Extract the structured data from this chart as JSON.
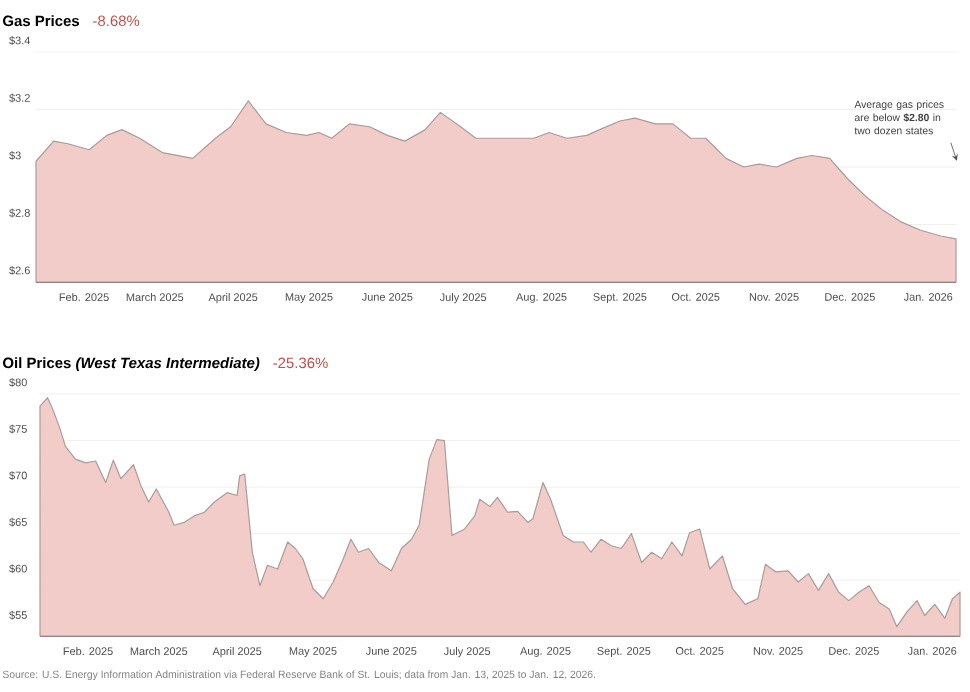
{
  "chart_data": [
    {
      "type": "area",
      "title": "Gas Prices",
      "subtitle": "-8.68%",
      "color": "#f2ccc8",
      "grid": "y",
      "xlim": [
        "2025-01-13",
        "2026-01-12"
      ],
      "ylim": [
        2.6,
        3.4
      ],
      "xticks": [
        {
          "value": "2025-02-01",
          "label": "Feb. 2025"
        },
        {
          "value": "2025-03-01",
          "label": "March 2025"
        },
        {
          "value": "2025-04-01",
          "label": "April 2025"
        },
        {
          "value": "2025-05-01",
          "label": "May 2025"
        },
        {
          "value": "2025-06-01",
          "label": "June 2025"
        },
        {
          "value": "2025-07-01",
          "label": "July 2025"
        },
        {
          "value": "2025-08-01",
          "label": "Aug. 2025"
        },
        {
          "value": "2025-09-01",
          "label": "Sept. 2025"
        },
        {
          "value": "2025-10-01",
          "label": "Oct. 2025"
        },
        {
          "value": "2025-11-01",
          "label": "Nov. 2025"
        },
        {
          "value": "2025-12-01",
          "label": "Dec. 2025"
        },
        {
          "value": "2026-01-01",
          "label": "Jan. 2026"
        }
      ],
      "yticks": [
        {
          "value": 2.6,
          "label": "$2.6"
        },
        {
          "value": 2.8,
          "label": "$2.8"
        },
        {
          "value": 3,
          "label": "$3"
        },
        {
          "value": 3.2,
          "label": "$3.2"
        },
        {
          "value": 3.4,
          "label": "$3.4"
        }
      ],
      "x": [
        "2025-01-13",
        "2025-01-20",
        "2025-01-26",
        "2025-02-03",
        "2025-02-10",
        "2025-02-16",
        "2025-02-23",
        "2025-03-04",
        "2025-03-16",
        "2025-03-25",
        "2025-03-31",
        "2025-04-07",
        "2025-04-14",
        "2025-04-22",
        "2025-04-30",
        "2025-05-05",
        "2025-05-10",
        "2025-05-17",
        "2025-05-25",
        "2025-06-01",
        "2025-06-08",
        "2025-06-16",
        "2025-06-22",
        "2025-06-30",
        "2025-07-06",
        "2025-07-18",
        "2025-07-29",
        "2025-08-04",
        "2025-08-11",
        "2025-08-19",
        "2025-08-24",
        "2025-09-01",
        "2025-09-07",
        "2025-09-15",
        "2025-09-22",
        "2025-09-29",
        "2025-10-05",
        "2025-10-13",
        "2025-10-20",
        "2025-10-26",
        "2025-11-02",
        "2025-11-10",
        "2025-11-16",
        "2025-11-23",
        "2025-11-30",
        "2025-12-07",
        "2025-12-14",
        "2025-12-21",
        "2025-12-29",
        "2026-01-06",
        "2026-01-12"
      ],
      "values": [
        3.02,
        3.09,
        3.08,
        3.06,
        3.11,
        3.13,
        3.1,
        3.05,
        3.03,
        3.1,
        3.14,
        3.23,
        3.15,
        3.12,
        3.11,
        3.12,
        3.1,
        3.15,
        3.14,
        3.11,
        3.09,
        3.13,
        3.19,
        3.14,
        3.1,
        3.1,
        3.1,
        3.12,
        3.1,
        3.11,
        3.13,
        3.16,
        3.17,
        3.15,
        3.15,
        3.1,
        3.1,
        3.03,
        3.0,
        3.01,
        3.0,
        3.03,
        3.04,
        3.03,
        2.96,
        2.9,
        2.85,
        2.81,
        2.78,
        2.76,
        2.75
      ],
      "annotations": [
        "Average gas prices are below **$2.80** in two dozen states"
      ]
    },
    {
      "type": "area",
      "title": "Oil Prices *(West Texas Intermediate)*",
      "subtitle": "-25.36%",
      "color": "#f2ccc8",
      "grid": "y",
      "xlim": [
        "2025-01-13",
        "2026-01-12"
      ],
      "ylim": [
        54,
        80
      ],
      "xticks": [
        {
          "value": "2025-02-01",
          "label": "Feb. 2025"
        },
        {
          "value": "2025-03-01",
          "label": "March 2025"
        },
        {
          "value": "2025-04-01",
          "label": "April 2025"
        },
        {
          "value": "2025-05-01",
          "label": "May 2025"
        },
        {
          "value": "2025-06-01",
          "label": "June 2025"
        },
        {
          "value": "2025-07-01",
          "label": "July 2025"
        },
        {
          "value": "2025-08-01",
          "label": "Aug. 2025"
        },
        {
          "value": "2025-09-01",
          "label": "Sept. 2025"
        },
        {
          "value": "2025-10-01",
          "label": "Oct. 2025"
        },
        {
          "value": "2025-11-01",
          "label": "Nov. 2025"
        },
        {
          "value": "2025-12-01",
          "label": "Dec. 2025"
        },
        {
          "value": "2026-01-01",
          "label": "Jan. 2026"
        }
      ],
      "yticks": [
        {
          "value": 55,
          "label": "$55"
        },
        {
          "value": 60,
          "label": "$60"
        },
        {
          "value": 65,
          "label": "$65"
        },
        {
          "value": 70,
          "label": "$70"
        },
        {
          "value": 75,
          "label": "$75"
        },
        {
          "value": 80,
          "label": "$80"
        }
      ],
      "x": [
        "2025-01-13",
        "2025-01-16",
        "2025-01-18",
        "2025-01-21",
        "2025-01-23",
        "2025-01-27",
        "2025-01-31",
        "2025-02-04",
        "2025-02-08",
        "2025-02-11",
        "2025-02-14",
        "2025-02-19",
        "2025-02-22",
        "2025-02-25",
        "2025-02-28",
        "2025-03-05",
        "2025-03-07",
        "2025-03-11",
        "2025-03-15",
        "2025-03-19",
        "2025-03-23",
        "2025-03-28",
        "2025-04-01",
        "2025-04-02",
        "2025-04-04",
        "2025-04-07",
        "2025-04-10",
        "2025-04-13",
        "2025-04-17",
        "2025-04-21",
        "2025-04-24",
        "2025-04-27",
        "2025-05-01",
        "2025-05-05",
        "2025-05-09",
        "2025-05-13",
        "2025-05-16",
        "2025-05-19",
        "2025-05-23",
        "2025-05-27",
        "2025-06-01",
        "2025-06-05",
        "2025-06-09",
        "2025-06-12",
        "2025-06-16",
        "2025-06-19",
        "2025-06-22",
        "2025-06-25",
        "2025-06-30",
        "2025-07-04",
        "2025-07-06",
        "2025-07-10",
        "2025-07-13",
        "2025-07-17",
        "2025-07-21",
        "2025-07-25",
        "2025-07-27",
        "2025-07-31",
        "2025-08-03",
        "2025-08-08",
        "2025-08-12",
        "2025-08-16",
        "2025-08-19",
        "2025-08-23",
        "2025-08-27",
        "2025-08-31",
        "2025-09-04",
        "2025-09-08",
        "2025-09-12",
        "2025-09-16",
        "2025-09-20",
        "2025-09-24",
        "2025-09-27",
        "2025-10-01",
        "2025-10-05",
        "2025-10-10",
        "2025-10-14",
        "2025-10-19",
        "2025-10-24",
        "2025-10-27",
        "2025-10-31",
        "2025-11-05",
        "2025-11-09",
        "2025-11-13",
        "2025-11-17",
        "2025-11-21",
        "2025-11-25",
        "2025-11-29",
        "2025-12-03",
        "2025-12-07",
        "2025-12-11",
        "2025-12-15",
        "2025-12-18",
        "2025-12-22",
        "2025-12-26",
        "2025-12-29",
        "2026-01-02",
        "2026-01-06",
        "2026-01-09",
        "2026-01-12"
      ],
      "values": [
        78.7,
        79.6,
        78.4,
        76.2,
        74.4,
        73.0,
        72.6,
        72.8,
        70.5,
        72.9,
        70.9,
        72.4,
        70.1,
        68.4,
        69.8,
        67.3,
        65.9,
        66.2,
        66.9,
        67.3,
        68.4,
        69.4,
        69.1,
        71.2,
        71.4,
        63.0,
        59.4,
        61.6,
        61.2,
        64.1,
        63.4,
        62.3,
        59.1,
        58.0,
        59.8,
        62.3,
        64.4,
        63.0,
        63.4,
        61.9,
        61.0,
        63.4,
        64.4,
        65.9,
        73.0,
        75.1,
        75.0,
        64.8,
        65.5,
        66.9,
        68.7,
        67.9,
        68.9,
        67.3,
        67.4,
        66.2,
        66.6,
        70.5,
        68.7,
        64.8,
        64.1,
        64.1,
        63.0,
        64.4,
        63.7,
        63.4,
        65.0,
        61.9,
        63.0,
        62.3,
        64.1,
        62.6,
        65.1,
        65.5,
        61.2,
        62.6,
        59.1,
        57.4,
        58.0,
        61.7,
        60.9,
        61.0,
        59.8,
        60.7,
        58.9,
        60.7,
        58.7,
        57.8,
        58.7,
        59.4,
        57.6,
        56.9,
        55.0,
        56.6,
        57.8,
        56.2,
        57.4,
        55.9,
        58.0,
        58.7
      ],
      "annotations": [
        "Source: U.S. Energy Information Administration via Federal Reserve Bank of St. Louis; data from Jan. 13, 2025 to Jan. 12, 2026."
      ]
    }
  ]
}
